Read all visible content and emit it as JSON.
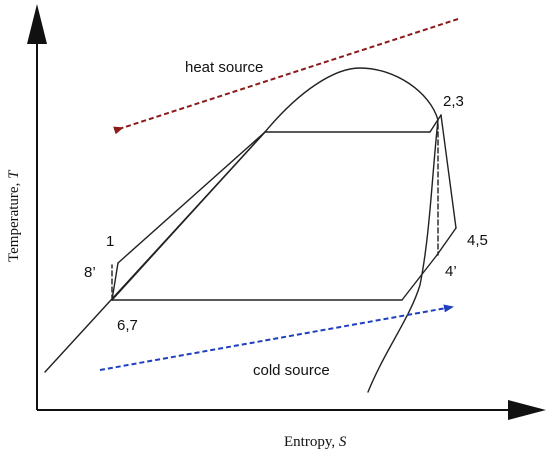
{
  "diagram": {
    "axes": {
      "x_label_text": "Entropy, ",
      "x_label_symbol": "S",
      "y_label_text": "Temperature, ",
      "y_label_symbol": "T"
    },
    "state_labels": {
      "p1": "1",
      "p8p": "8’",
      "p67": "6,7",
      "p23": "2,3",
      "p45": "4,5",
      "p4p": "4’"
    },
    "annotations": {
      "heat_source": "heat source",
      "cold_source": "cold source"
    },
    "colors": {
      "heat_source_arrow": "#8b1a1a",
      "cold_source_arrow": "#1f3fbf",
      "line": "#222222"
    }
  }
}
